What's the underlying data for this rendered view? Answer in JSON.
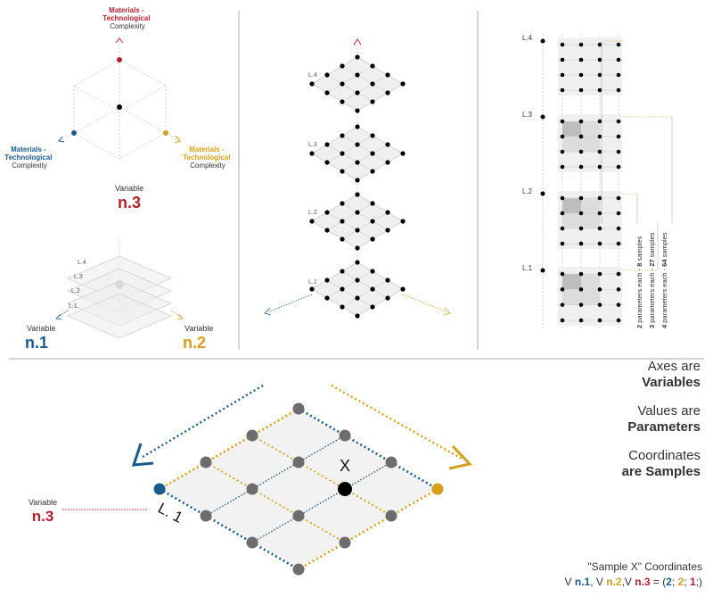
{
  "colors": {
    "red": "#b5202e",
    "blue": "#1d5a8c",
    "gold": "#d6a01c",
    "grid": "#cfcfcf"
  },
  "top_left": {
    "axis_red": [
      "Materials -",
      "Technological",
      "Complexity"
    ],
    "axis_blue": [
      "Materials -",
      "Technological",
      "Complexity"
    ],
    "axis_gold": [
      "Materials -",
      "Technological",
      "Complexity"
    ],
    "var3_label": "Variable",
    "var3_value": "n.3",
    "var1_label": "Variable",
    "var1_value": "n.1",
    "var2_label": "Variable",
    "var2_value": "n.2",
    "layers": [
      "L.4",
      "L.3",
      "L.2",
      "L.1"
    ]
  },
  "middle": {
    "layers": [
      "L.4",
      "L.3",
      "L.2",
      "L.1"
    ]
  },
  "right": {
    "layers": [
      "L.4",
      "L.3",
      "L.2",
      "L.1"
    ],
    "notes": [
      {
        "prefix": "2",
        "middle": " parameters each - ",
        "value": "8",
        "suffix": " samples"
      },
      {
        "prefix": "3",
        "middle": " parameters each - ",
        "value": "27",
        "suffix": " samples"
      },
      {
        "prefix": "4",
        "middle": " parameters each - ",
        "value": "64",
        "suffix": " samples"
      }
    ]
  },
  "bottom": {
    "var3_label": "Variable",
    "var3_value": "n.3",
    "layer_label": "L. 1",
    "point_label": "X"
  },
  "legend": [
    {
      "label": "Axes are",
      "strong": "Variables"
    },
    {
      "label": "Values are",
      "strong": "Parameters"
    },
    {
      "label": "Coordinates",
      "strong": "are Samples"
    }
  ],
  "coords": {
    "title": "\"Sample X\" Coordinates",
    "v1": "V ",
    "n1": "n.1",
    "c1": ", V ",
    "n2": "n.2",
    "c2": ",V ",
    "n3": "n.3",
    "eq": " = (",
    "a": "2",
    "s1": "; ",
    "b": "2",
    "s2": "; ",
    "c": "1",
    "end": ";)"
  }
}
